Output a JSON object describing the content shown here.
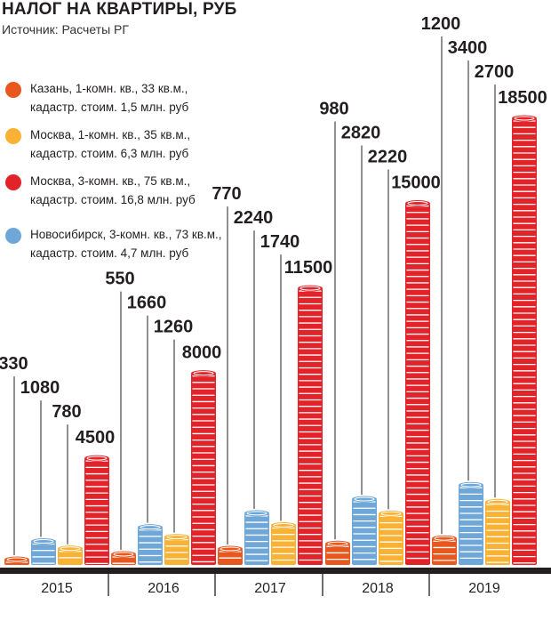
{
  "title": "НАЛОГ НА КВАРТИРЫ, РУБ",
  "source": "Источник: Расчеты РГ",
  "chart_data": {
    "type": "bar",
    "categories": [
      "2015",
      "2016",
      "2017",
      "2018",
      "2019"
    ],
    "series": [
      {
        "name": "Казань, 1-комн. кв., 33 кв.м., кадастр. стоим. 1,5 млн. руб",
        "color": "#e8571e",
        "values": [
          330,
          550,
          770,
          980,
          1200
        ]
      },
      {
        "name": "Новосибирск, 3-комн. кв., 73 кв.м., кадастр. стоим. 4,7 млн. руб",
        "color": "#6fa8d8",
        "values": [
          1080,
          1660,
          2240,
          2820,
          3400
        ]
      },
      {
        "name": "Москва, 1-комн. кв., 35 кв.м., кадастр. стоим. 6,3 млн. руб",
        "color": "#f9b233",
        "values": [
          780,
          1260,
          1740,
          2220,
          2700
        ]
      },
      {
        "name": "Москва, 3-комн. кв., 75 кв.м., кадастр. стоим. 16,8 млн. руб",
        "color": "#e2232a",
        "values": [
          4500,
          8000,
          11500,
          15000,
          18500
        ]
      }
    ],
    "legend_order": [
      0,
      2,
      3,
      1
    ],
    "ylim": [
      0,
      18500
    ],
    "grid": false,
    "legend": "top-left"
  }
}
